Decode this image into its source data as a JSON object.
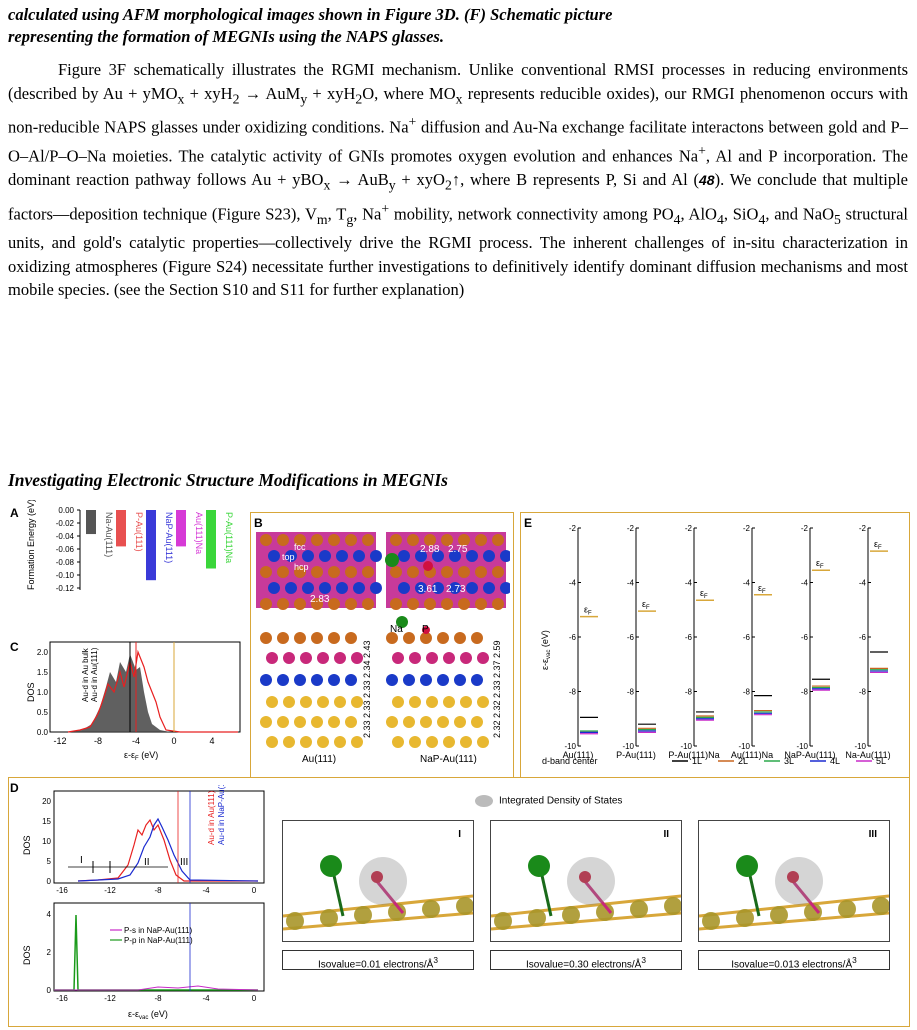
{
  "caption": {
    "line1": "calculated using AFM morphological images shown in Figure 3D. (F) Schematic picture",
    "line2": "representing the formation of MEGNIs using the NAPS glasses."
  },
  "paragraph": {
    "s1": "Figure 3F schematically illustrates the RGMI mechanism. Unlike conventional RMSI processes in reducing environments (described by Au + yMO",
    "s2": " + xyH",
    "s3": " → AuM",
    "s4": " + xyH",
    "s5": "O, where MO",
    "s6": " represents reducible oxides), our RMGI phenomenon occurs with non-reducible NAPS glasses under oxidizing conditions. Na",
    "s7": " diffusion and Au-Na exchange facilitate interactons between gold and P–O–Al/P–O–Na moieties. The catalytic activity of GNIs promotes oxygen evolution and enhances Na",
    "s8": ", Al and P incorporation. The dominant reaction pathway follows Au + yBO",
    "s9": " → AuB",
    "s10": " + xyO",
    "s11": "↑, where B represents P, Si and Al (",
    "ref": "48",
    "s12": "). We conclude that multiple factors—deposition technique (Figure S23), V",
    "s13": ", T",
    "s14": ", Na",
    "s15": " mobility, network connectivity among PO",
    "s16": ", AlO",
    "s17": ", SiO",
    "s18": ", and NaO",
    "s19": " structural units, and gold's catalytic properties—collectively drive the RGMI process. The inherent challenges of in-situ characterization in oxidizing atmospheres (Figure S24) necessitate further investigations to definitively identify dominant diffusion mechanisms and most mobile species. (see the Section S10 and S11 for further explanation)",
    "sub_x": "x",
    "sub_2": "2",
    "sub_y": "y",
    "sub_m": "m",
    "sub_g": "g",
    "sub_4": "4",
    "sub_5": "5",
    "sup_plus": "+"
  },
  "heading": "Investigating Electronic Structure Modifications in MEGNIs",
  "figure": {
    "labels": {
      "A": "A",
      "B": "B",
      "C": "C",
      "D": "D",
      "E": "E"
    },
    "panelA": {
      "ylabel": "Formation Energy (eV)",
      "yticks": [
        "0.00",
        "-0.02",
        "-0.04",
        "-0.06",
        "-0.08",
        "-0.10",
        "-0.12"
      ],
      "bars": [
        {
          "name": "Na-Au(111)",
          "value": -0.037,
          "color": "#555555"
        },
        {
          "name": "P-Au(111)",
          "value": -0.056,
          "color": "#e85050"
        },
        {
          "name": "NaP-Au(111)",
          "value": -0.108,
          "color": "#3a3ad8"
        },
        {
          "name": "Au(111)Na",
          "value": -0.056,
          "color": "#d63ad6"
        },
        {
          "name": "P-Au(111)Na",
          "value": -0.09,
          "color": "#3ad63a"
        }
      ]
    },
    "panelB": {
      "top_labels": [
        "fcc",
        "top",
        "hcp"
      ],
      "dist_left": "2.83",
      "dist_right": [
        "2.88",
        "2.75",
        "3.61",
        "2.73"
      ],
      "atom_labels": [
        "Na",
        "P"
      ],
      "layers_left": [
        "2.43",
        "2.34",
        "2.33",
        "2.33",
        "2.33"
      ],
      "layers_right": [
        "2.59",
        "2.37",
        "2.33",
        "2.32",
        "2.32"
      ],
      "caption_left": "Au(111)",
      "caption_right": "NaP-Au(111)"
    },
    "panelC": {
      "ylabel": "DOS",
      "xlabel": "ε-ε",
      "xlabel_sub": "F",
      "xlabel_unit": " (eV)",
      "xticks": [
        "-12",
        "-8",
        "-4",
        "0",
        "4"
      ],
      "yticks": [
        "0.0",
        "0.5",
        "1.0",
        "1.5",
        "2.0"
      ],
      "legend": [
        "Au-d in Au bulk",
        "Au-d in Au(111)"
      ]
    },
    "panelD": {
      "top": {
        "ylabel": "DOS",
        "yticks": [
          "0",
          "5",
          "10",
          "15",
          "20"
        ],
        "xticks": [
          "-16",
          "-12",
          "-8",
          "-4",
          "0"
        ],
        "regions": [
          "I",
          "II",
          "III"
        ],
        "legend": [
          "Au-d in Au(111)",
          "Au-d in NaP-Au(111)"
        ]
      },
      "bottom": {
        "ylabel": "DOS",
        "yticks": [
          "0",
          "2",
          "4"
        ],
        "xticks": [
          "-16",
          "-12",
          "-8",
          "-4",
          "0"
        ],
        "legend": [
          "P-s in NaP-Au(111)",
          "P-p in NaP-Au(111)"
        ],
        "xlabel": "ε-ε",
        "xlabel_sub": "vac",
        "xlabel_unit": " (eV)"
      },
      "ids_legend": "Integrated Density of States",
      "images": [
        {
          "roman": "I",
          "iso": "Isovalue=0.01 electrons/Å",
          "sup": "3"
        },
        {
          "roman": "II",
          "iso": "Isovalue=0.30 electrons/Å",
          "sup": "3"
        },
        {
          "roman": "III",
          "iso": "Isovalue=0.013 electrons/Å",
          "sup": "3"
        }
      ]
    },
    "panelE": {
      "ylabel": "ε-ε",
      "ylabel_sub": "vac",
      "ylabel_unit": " (eV)",
      "yticks": [
        "-2",
        "-4",
        "-6",
        "-8",
        "-10"
      ],
      "eF": "ε",
      "eF_sub": "F",
      "systems": [
        "Au(111)",
        "P-Au(111)",
        "P-Au(111)Na",
        "Au(111)Na",
        "NaP-Au(111)",
        "Na-Au(111)"
      ],
      "fermi": [
        -5.25,
        -5.05,
        -4.65,
        -4.45,
        -3.55,
        -2.85
      ],
      "dband": [
        [
          -8.95,
          -9.5,
          -9.45,
          -9.5,
          -9.55
        ],
        [
          -9.2,
          -9.35,
          -9.4,
          -9.45,
          -9.5
        ],
        [
          -8.75,
          -8.9,
          -8.95,
          -9.0,
          -9.05
        ],
        [
          -8.15,
          -8.7,
          -8.75,
          -8.8,
          -8.85
        ],
        [
          -7.55,
          -7.8,
          -7.85,
          -7.9,
          -7.95
        ],
        [
          -6.55,
          -7.15,
          -7.2,
          -7.25,
          -7.3
        ]
      ],
      "legend_title": "d-band center",
      "legend": [
        "1L",
        "2L",
        "3L",
        "4L",
        "5L"
      ],
      "legend_colors": [
        "#000000",
        "#c8641e",
        "#2aa84a",
        "#1a2ad0",
        "#c82ac8"
      ]
    },
    "colors": {
      "frame": "#d8a73a",
      "gold": "#e8b830",
      "blue": "#1a3ac8",
      "magenta": "#c8287a",
      "orange": "#c86a1e",
      "green": "#1a8a1a"
    }
  }
}
